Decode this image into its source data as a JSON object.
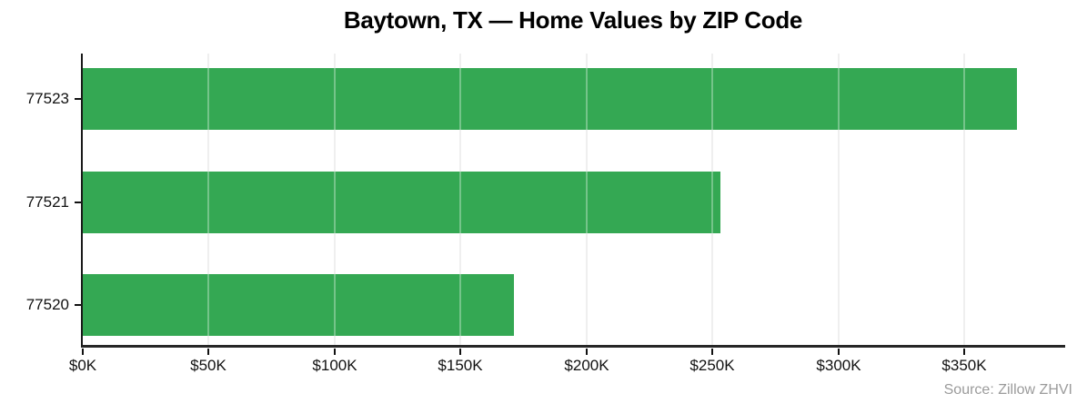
{
  "figure": {
    "title": "Baytown, TX — Home Values by ZIP Code",
    "source_label": "Source: Zillow ZHVI"
  },
  "chart_data": {
    "type": "bar",
    "orientation": "horizontal",
    "title": "Baytown, TX — Home Values by ZIP Code",
    "categories": [
      "77523",
      "77521",
      "77520"
    ],
    "values": [
      371000,
      253000,
      171000
    ],
    "values_display": [
      "$371K",
      "$253K",
      "$171K"
    ],
    "unit": "USD",
    "xlabel": "",
    "ylabel": "",
    "xlim": [
      0,
      390000
    ],
    "x_ticks": [
      {
        "value": 0,
        "label": "$0K"
      },
      {
        "value": 50000,
        "label": "$50K"
      },
      {
        "value": 100000,
        "label": "$100K"
      },
      {
        "value": 150000,
        "label": "$150K"
      },
      {
        "value": 200000,
        "label": "$200K"
      },
      {
        "value": 250000,
        "label": "$250K"
      },
      {
        "value": 300000,
        "label": "$300K"
      },
      {
        "value": 350000,
        "label": "$350K"
      }
    ],
    "grid": "vertical",
    "legend": "none",
    "bar_color": "#34a853",
    "axis_color": "#1a1a1a",
    "gridline_color": "#e8e8e8",
    "source": "Source: Zillow ZHVI"
  }
}
